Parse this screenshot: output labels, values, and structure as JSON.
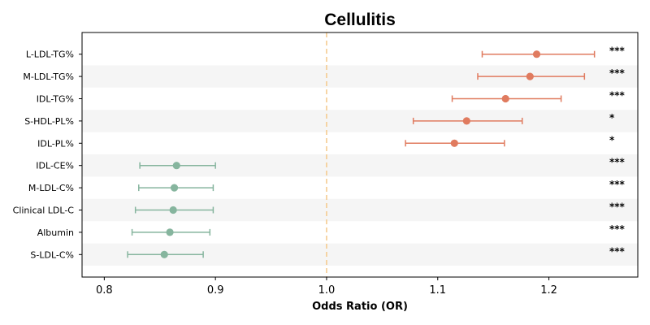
{
  "chart_data": {
    "type": "forest",
    "title": "Cellulitis",
    "xlabel": "Odds Ratio (OR)",
    "xlim": [
      0.78,
      1.28
    ],
    "xticks": [
      0.8,
      0.9,
      1.0,
      1.1,
      1.2
    ],
    "xtick_labels": [
      "0.8",
      "0.9",
      "1.0",
      "1.1",
      "1.2"
    ],
    "reference_line": 1.0,
    "colors": {
      "increase": "#e07b5f",
      "decrease": "#86b59e",
      "reference": "#f5c98a",
      "band": "#f5f5f5"
    },
    "rows": [
      {
        "label": "L-LDL-TG%",
        "or": 1.189,
        "lower": 1.14,
        "upper": 1.241,
        "sig": "***"
      },
      {
        "label": "M-LDL-TG%",
        "or": 1.183,
        "lower": 1.136,
        "upper": 1.232,
        "sig": "***"
      },
      {
        "label": "IDL-TG%",
        "or": 1.161,
        "lower": 1.113,
        "upper": 1.211,
        "sig": "***"
      },
      {
        "label": "S-HDL-PL%",
        "or": 1.126,
        "lower": 1.078,
        "upper": 1.176,
        "sig": "*"
      },
      {
        "label": "IDL-PL%",
        "or": 1.115,
        "lower": 1.071,
        "upper": 1.16,
        "sig": "*"
      },
      {
        "label": "IDL-CE%",
        "or": 0.865,
        "lower": 0.832,
        "upper": 0.9,
        "sig": "***"
      },
      {
        "label": "M-LDL-C%",
        "or": 0.863,
        "lower": 0.831,
        "upper": 0.898,
        "sig": "***"
      },
      {
        "label": "Clinical LDL-C",
        "or": 0.862,
        "lower": 0.828,
        "upper": 0.898,
        "sig": "***"
      },
      {
        "label": "Albumin",
        "or": 0.859,
        "lower": 0.825,
        "upper": 0.895,
        "sig": "***"
      },
      {
        "label": "S-LDL-C%",
        "or": 0.854,
        "lower": 0.821,
        "upper": 0.889,
        "sig": "***"
      }
    ]
  }
}
